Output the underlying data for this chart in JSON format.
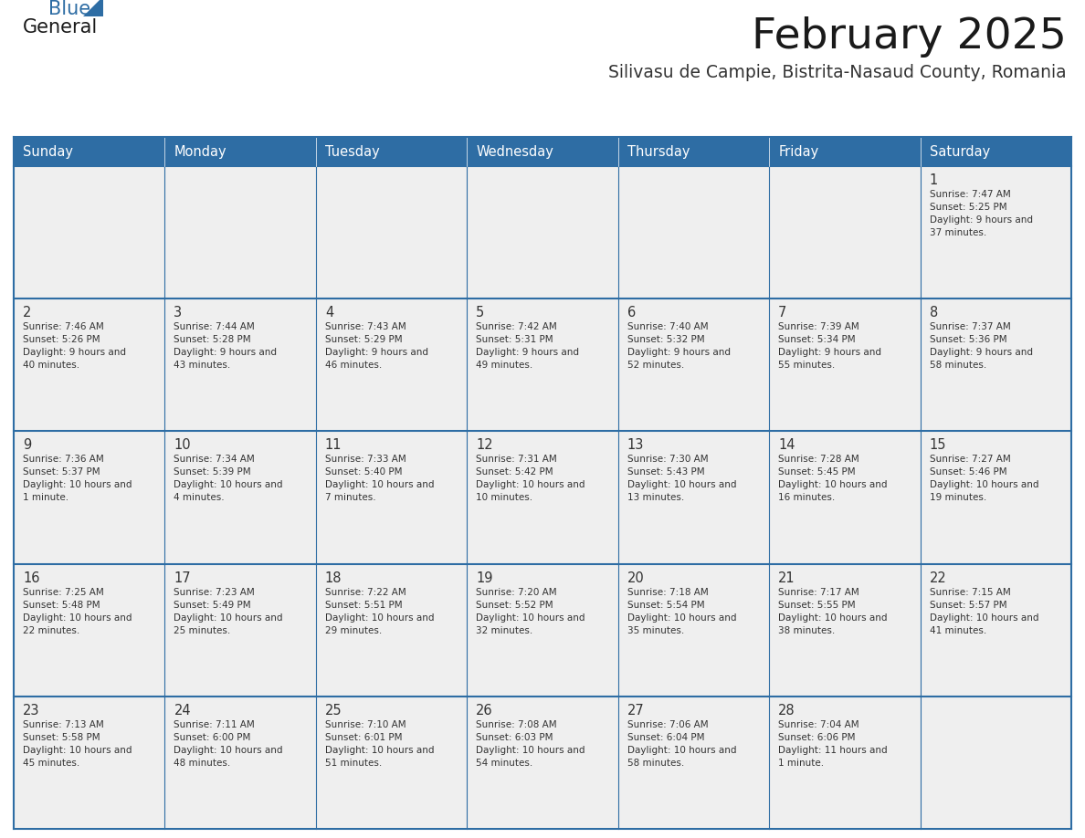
{
  "title": "February 2025",
  "subtitle": "Silivasu de Campie, Bistrita-Nasaud County, Romania",
  "days_of_week": [
    "Sunday",
    "Monday",
    "Tuesday",
    "Wednesday",
    "Thursday",
    "Friday",
    "Saturday"
  ],
  "header_bg": "#2E6DA4",
  "header_text": "#FFFFFF",
  "cell_bg_light": "#EFEFEF",
  "cell_bg_white": "#FFFFFF",
  "border_color": "#2E6DA4",
  "text_color": "#333333",
  "title_color": "#1a1a1a",
  "subtitle_color": "#333333",
  "logo_general_color": "#1a1a1a",
  "logo_blue_color": "#2E6DA4",
  "calendar_data": [
    [
      null,
      null,
      null,
      null,
      null,
      null,
      {
        "day": 1,
        "sunrise": "7:47 AM",
        "sunset": "5:25 PM",
        "daylight": "9 hours and 37 minutes."
      }
    ],
    [
      {
        "day": 2,
        "sunrise": "7:46 AM",
        "sunset": "5:26 PM",
        "daylight": "9 hours and 40 minutes."
      },
      {
        "day": 3,
        "sunrise": "7:44 AM",
        "sunset": "5:28 PM",
        "daylight": "9 hours and 43 minutes."
      },
      {
        "day": 4,
        "sunrise": "7:43 AM",
        "sunset": "5:29 PM",
        "daylight": "9 hours and 46 minutes."
      },
      {
        "day": 5,
        "sunrise": "7:42 AM",
        "sunset": "5:31 PM",
        "daylight": "9 hours and 49 minutes."
      },
      {
        "day": 6,
        "sunrise": "7:40 AM",
        "sunset": "5:32 PM",
        "daylight": "9 hours and 52 minutes."
      },
      {
        "day": 7,
        "sunrise": "7:39 AM",
        "sunset": "5:34 PM",
        "daylight": "9 hours and 55 minutes."
      },
      {
        "day": 8,
        "sunrise": "7:37 AM",
        "sunset": "5:36 PM",
        "daylight": "9 hours and 58 minutes."
      }
    ],
    [
      {
        "day": 9,
        "sunrise": "7:36 AM",
        "sunset": "5:37 PM",
        "daylight": "10 hours and 1 minute."
      },
      {
        "day": 10,
        "sunrise": "7:34 AM",
        "sunset": "5:39 PM",
        "daylight": "10 hours and 4 minutes."
      },
      {
        "day": 11,
        "sunrise": "7:33 AM",
        "sunset": "5:40 PM",
        "daylight": "10 hours and 7 minutes."
      },
      {
        "day": 12,
        "sunrise": "7:31 AM",
        "sunset": "5:42 PM",
        "daylight": "10 hours and 10 minutes."
      },
      {
        "day": 13,
        "sunrise": "7:30 AM",
        "sunset": "5:43 PM",
        "daylight": "10 hours and 13 minutes."
      },
      {
        "day": 14,
        "sunrise": "7:28 AM",
        "sunset": "5:45 PM",
        "daylight": "10 hours and 16 minutes."
      },
      {
        "day": 15,
        "sunrise": "7:27 AM",
        "sunset": "5:46 PM",
        "daylight": "10 hours and 19 minutes."
      }
    ],
    [
      {
        "day": 16,
        "sunrise": "7:25 AM",
        "sunset": "5:48 PM",
        "daylight": "10 hours and 22 minutes."
      },
      {
        "day": 17,
        "sunrise": "7:23 AM",
        "sunset": "5:49 PM",
        "daylight": "10 hours and 25 minutes."
      },
      {
        "day": 18,
        "sunrise": "7:22 AM",
        "sunset": "5:51 PM",
        "daylight": "10 hours and 29 minutes."
      },
      {
        "day": 19,
        "sunrise": "7:20 AM",
        "sunset": "5:52 PM",
        "daylight": "10 hours and 32 minutes."
      },
      {
        "day": 20,
        "sunrise": "7:18 AM",
        "sunset": "5:54 PM",
        "daylight": "10 hours and 35 minutes."
      },
      {
        "day": 21,
        "sunrise": "7:17 AM",
        "sunset": "5:55 PM",
        "daylight": "10 hours and 38 minutes."
      },
      {
        "day": 22,
        "sunrise": "7:15 AM",
        "sunset": "5:57 PM",
        "daylight": "10 hours and 41 minutes."
      }
    ],
    [
      {
        "day": 23,
        "sunrise": "7:13 AM",
        "sunset": "5:58 PM",
        "daylight": "10 hours and 45 minutes."
      },
      {
        "day": 24,
        "sunrise": "7:11 AM",
        "sunset": "6:00 PM",
        "daylight": "10 hours and 48 minutes."
      },
      {
        "day": 25,
        "sunrise": "7:10 AM",
        "sunset": "6:01 PM",
        "daylight": "10 hours and 51 minutes."
      },
      {
        "day": 26,
        "sunrise": "7:08 AM",
        "sunset": "6:03 PM",
        "daylight": "10 hours and 54 minutes."
      },
      {
        "day": 27,
        "sunrise": "7:06 AM",
        "sunset": "6:04 PM",
        "daylight": "10 hours and 58 minutes."
      },
      {
        "day": 28,
        "sunrise": "7:04 AM",
        "sunset": "6:06 PM",
        "daylight": "11 hours and 1 minute."
      },
      null
    ]
  ]
}
